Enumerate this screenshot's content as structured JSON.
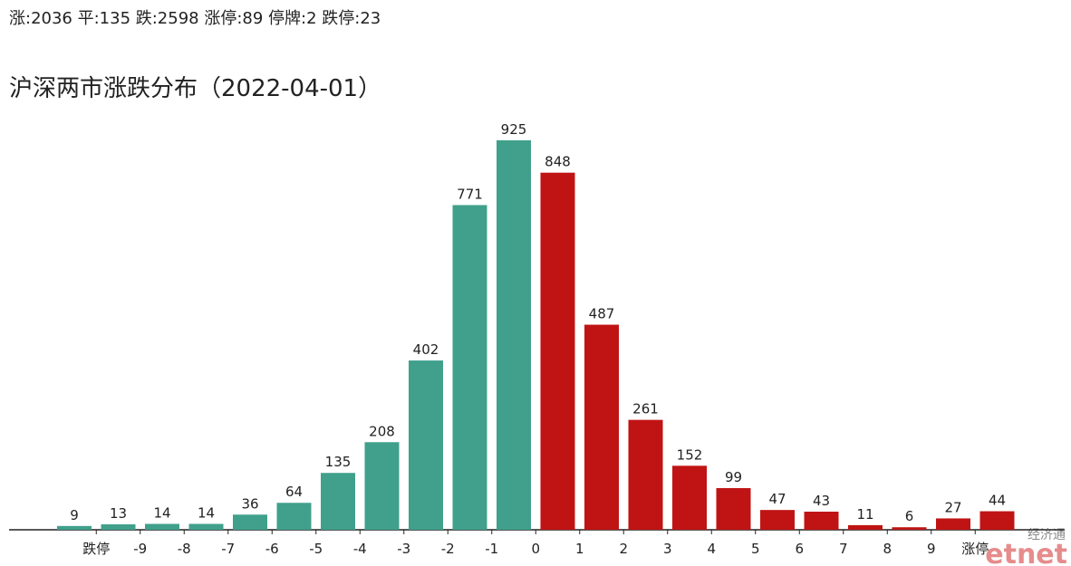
{
  "header": "涨:2036 平:135 跌:2598 涨停:89 停牌:2 跌停:23",
  "watermark": {
    "top": "经济通",
    "bottom": "etnet"
  },
  "chart_data": {
    "type": "bar",
    "title": "沪深两市涨跌分布（2022-04-01）",
    "values": [
      9,
      13,
      14,
      14,
      36,
      64,
      135,
      208,
      402,
      771,
      925,
      848,
      487,
      261,
      152,
      99,
      47,
      43,
      11,
      6,
      27,
      44
    ],
    "colors": [
      "#40a08c",
      "#40a08c",
      "#40a08c",
      "#40a08c",
      "#40a08c",
      "#40a08c",
      "#40a08c",
      "#40a08c",
      "#40a08c",
      "#40a08c",
      "#40a08c",
      "#c01414",
      "#c01414",
      "#c01414",
      "#c01414",
      "#c01414",
      "#c01414",
      "#c01414",
      "#c01414",
      "#c01414",
      "#c01414",
      "#c01414"
    ],
    "xticks": [
      "跌停",
      "-9",
      "-8",
      "-7",
      "-6",
      "-5",
      "-4",
      "-3",
      "-2",
      "-1",
      "0",
      "1",
      "2",
      "3",
      "4",
      "5",
      "6",
      "7",
      "8",
      "9",
      "涨停"
    ],
    "ylim": [
      0,
      1000
    ]
  }
}
